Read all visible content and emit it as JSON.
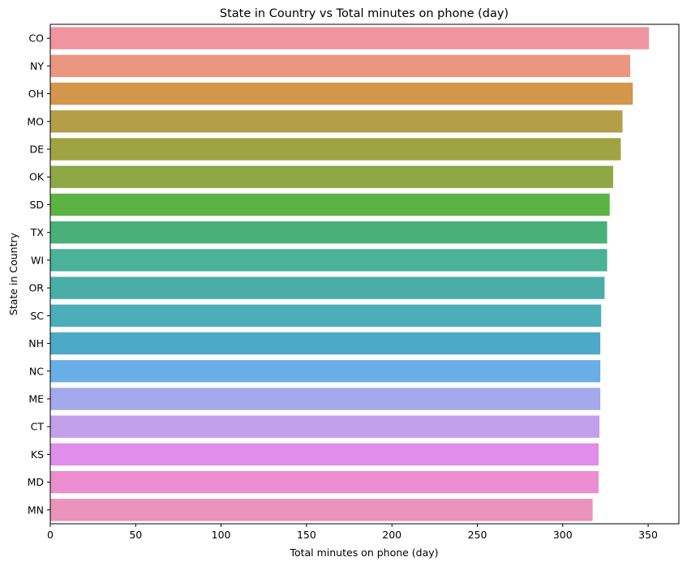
{
  "chart_data": {
    "type": "bar",
    "orientation": "horizontal",
    "title": "State in Country vs Total minutes on phone (day)",
    "xlabel": "Total minutes on phone (day)",
    "ylabel": "State in Country",
    "xlim": [
      0,
      368
    ],
    "xticks": [
      0,
      50,
      100,
      150,
      200,
      250,
      300,
      350
    ],
    "grid": false,
    "categories": [
      "CO",
      "NY",
      "OH",
      "MO",
      "DE",
      "OK",
      "SD",
      "TX",
      "WI",
      "OR",
      "SC",
      "NH",
      "NC",
      "ME",
      "CT",
      "KS",
      "MD",
      "MN"
    ],
    "values": [
      350.5,
      339.5,
      341.0,
      335.0,
      334.0,
      329.5,
      327.5,
      326.0,
      326.0,
      324.5,
      322.5,
      322.0,
      322.0,
      322.0,
      321.5,
      321.0,
      321.0,
      317.5
    ],
    "colors": [
      "#ee959f",
      "#eb967f",
      "#d3974c",
      "#b49e48",
      "#9fa443",
      "#8da844",
      "#5cb343",
      "#49b079",
      "#4bb198",
      "#4aada8",
      "#4baeb9",
      "#4daac7",
      "#6aaee6",
      "#a4a9eb",
      "#c49feb",
      "#e08dec",
      "#ea8ed0",
      "#ea93bb"
    ]
  }
}
